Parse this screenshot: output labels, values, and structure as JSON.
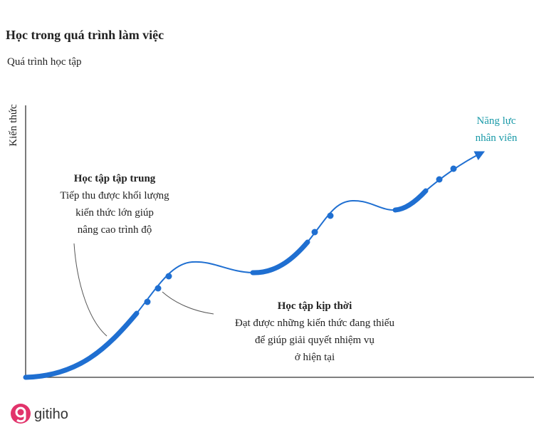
{
  "header": {
    "title": "Học trong quá trình làm việc",
    "subtitle": "Quá trình học tập"
  },
  "axis": {
    "y_label": "Kiến thức"
  },
  "annotations": [
    {
      "title": "Học tập tập trung",
      "lines": [
        "Tiếp thu được khối lượng",
        "kiến thức lớn giúp",
        "nâng cao trình độ"
      ]
    },
    {
      "title": "Học tập kịp thời",
      "lines": [
        "Đạt được những kiến thức đang thiếu",
        "để giúp giải quyết nhiệm vụ",
        "ở hiện tại"
      ]
    }
  ],
  "end_label": [
    "Năng lực",
    "nhân viên"
  ],
  "logo": "gitiho"
}
